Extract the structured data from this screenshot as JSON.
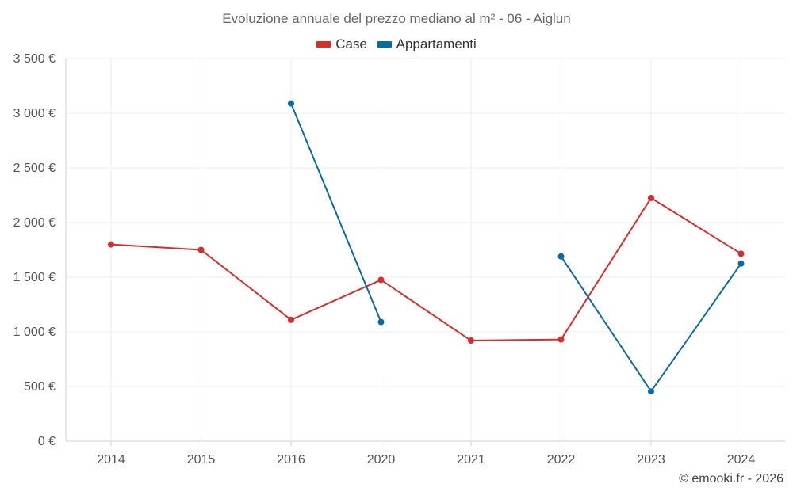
{
  "chart_data": {
    "type": "line",
    "title": "Evoluzione annuale del prezzo mediano al m² - 06 - Aiglun",
    "categories": [
      "2014",
      "2015",
      "2016",
      "2020",
      "2021",
      "2022",
      "2023",
      "2024"
    ],
    "ylim": [
      0,
      3500
    ],
    "yticks": [
      0,
      500,
      1000,
      1500,
      2000,
      2500,
      3000,
      3500
    ],
    "ytick_labels": [
      "0 €",
      "500 €",
      "1 000 €",
      "1 500 €",
      "2 000 €",
      "2 500 €",
      "3 000 €",
      "3 500 €"
    ],
    "grid": true,
    "legend_position": "top-center",
    "series": [
      {
        "name": "Case",
        "color": "#d32f2f",
        "values": [
          1800,
          1750,
          1110,
          1475,
          920,
          930,
          2225,
          1715
        ]
      },
      {
        "name": "Appartamenti",
        "color": "#0a6aa1",
        "values": [
          null,
          null,
          3090,
          1090,
          null,
          1690,
          455,
          1625
        ]
      }
    ]
  },
  "credit": "© emooki.fr - 2026"
}
